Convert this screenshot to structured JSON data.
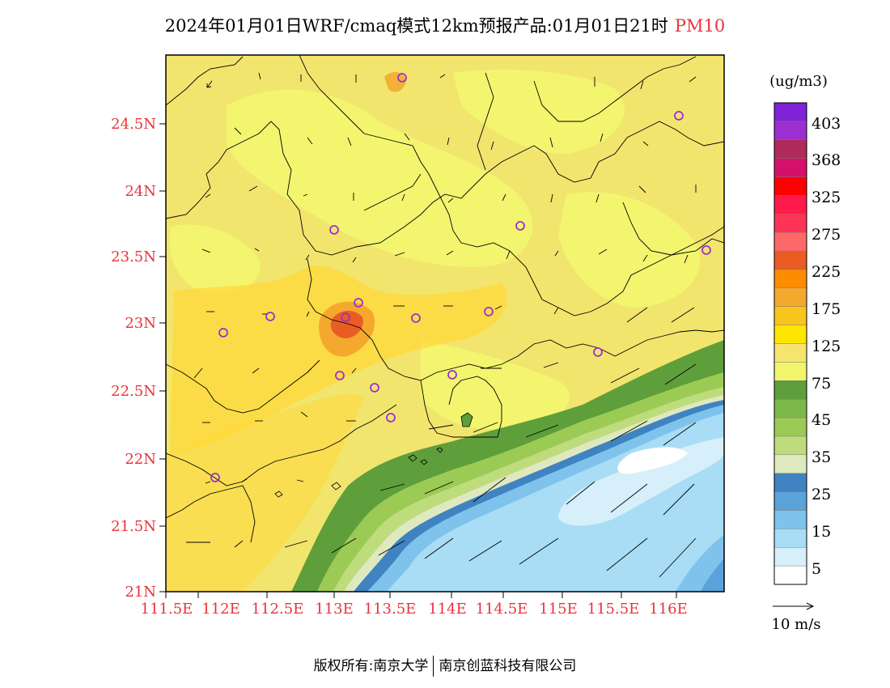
{
  "title": {
    "main": "2024年01月01日WRF/cmaq模式12km预报产品:01月01日21时",
    "variable": "PM10"
  },
  "map": {
    "lon_range": [
      111.5,
      116.7
    ],
    "lat_range": [
      21.0,
      24.95
    ],
    "x_ticks": [
      "111.5E",
      "112E",
      "112.5E",
      "113E",
      "113.5E",
      "114E",
      "114.5E",
      "115E",
      "115.5E",
      "116E"
    ],
    "y_ticks": [
      "21N",
      "21.5N",
      "22N",
      "22.5N",
      "23N",
      "23.5N",
      "24N",
      "24.5N"
    ],
    "tick_color": "#e8333a",
    "stations_color": "#9b30d0"
  },
  "colorbar": {
    "unit": "(ug/m3)",
    "colors": [
      "#ffffff",
      "#d6effa",
      "#a9dcf5",
      "#7fc3ec",
      "#5aa3d9",
      "#3f83c1",
      "#dfe9c0",
      "#bfdc7d",
      "#9ccb55",
      "#7db94a",
      "#5f9f3b",
      "#f2f56c",
      "#f5e56e",
      "#ffe600",
      "#f8c51c",
      "#f5a82e",
      "#ff8c00",
      "#e95c24",
      "#ff6868",
      "#ff3355",
      "#ff1a4b",
      "#ff0000",
      "#d4106a",
      "#b02a5a",
      "#9c2fd0",
      "#7f22d8"
    ],
    "labels": [
      "5",
      "15",
      "25",
      "35",
      "45",
      "75",
      "125",
      "175",
      "225",
      "275",
      "325",
      "368",
      "403"
    ]
  },
  "vector_legend": {
    "label": "10 m/s"
  },
  "footer": {
    "left": "版权所有:南京大学",
    "right": "南京创蓝科技有限公司"
  }
}
